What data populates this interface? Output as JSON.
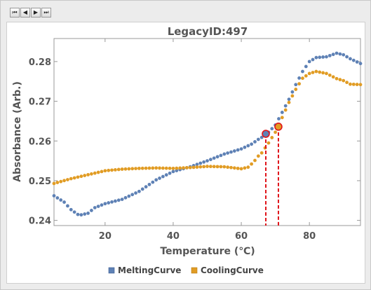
{
  "toolbar": {
    "buttons": [
      {
        "name": "first-button",
        "glyph": "⏮"
      },
      {
        "name": "prev-button",
        "glyph": "◀"
      },
      {
        "name": "next-button",
        "glyph": "▶"
      },
      {
        "name": "last-button",
        "glyph": "⏭"
      }
    ]
  },
  "chart_data": {
    "type": "scatter",
    "title": "LegacyID:497",
    "xlabel": "Temperature  (℃)",
    "ylabel": "Absorbance  (Arb.)",
    "xlim": [
      5,
      95
    ],
    "ylim": [
      0.2387,
      0.2858
    ],
    "xticks": [
      20,
      40,
      60,
      80
    ],
    "yticks": [
      0.24,
      0.25,
      0.26,
      0.27,
      0.28
    ],
    "ytick_labels": [
      "0.24",
      "0.25",
      "0.26",
      "0.27",
      "0.28"
    ],
    "xtick_labels": [
      "20",
      "40",
      "60",
      "80"
    ],
    "legend_position": "bottom-center",
    "series": [
      {
        "name": "MeltingCurve",
        "color": "#5e81b5",
        "knots_x": [
          5,
          8,
          10,
          12,
          13,
          15,
          17,
          20,
          25,
          30,
          35,
          40,
          45,
          50,
          55,
          60,
          63,
          65,
          67,
          68,
          70,
          72,
          74,
          76,
          78,
          80,
          82,
          85,
          88,
          90,
          92,
          95
        ],
        "knots_y": [
          0.2462,
          0.2446,
          0.2427,
          0.2415,
          0.2414,
          0.2418,
          0.2432,
          0.2442,
          0.2453,
          0.2473,
          0.2502,
          0.2523,
          0.2535,
          0.255,
          0.2567,
          0.258,
          0.2592,
          0.2604,
          0.2614,
          0.2622,
          0.264,
          0.2672,
          0.2705,
          0.2742,
          0.2775,
          0.28,
          0.281,
          0.2812,
          0.2821,
          0.2817,
          0.2807,
          0.2795
        ]
      },
      {
        "name": "CoolingCurve",
        "color": "#e19c24",
        "knots_x": [
          5,
          10,
          15,
          20,
          25,
          30,
          35,
          40,
          45,
          50,
          55,
          58,
          60,
          62,
          63,
          64,
          65,
          66,
          68,
          70,
          72,
          74,
          76,
          78,
          80,
          82,
          85,
          88,
          90,
          92,
          95
        ],
        "knots_y": [
          0.2493,
          0.2505,
          0.2515,
          0.2525,
          0.2529,
          0.2531,
          0.2532,
          0.2531,
          0.2533,
          0.2536,
          0.2535,
          0.2532,
          0.253,
          0.2534,
          0.2542,
          0.2551,
          0.2562,
          0.257,
          0.2595,
          0.2622,
          0.2659,
          0.2697,
          0.273,
          0.2758,
          0.277,
          0.2775,
          0.277,
          0.2757,
          0.2752,
          0.2743,
          0.2742
        ]
      }
    ],
    "markers": [
      {
        "series": "MeltingCurve",
        "x": 67.2,
        "y": 0.2618,
        "fill": "#5e81b5"
      },
      {
        "series": "CoolingCurve",
        "x": 70.9,
        "y": 0.2636,
        "fill": "#e19c24"
      }
    ],
    "marker_line_color": "#e0141a"
  }
}
